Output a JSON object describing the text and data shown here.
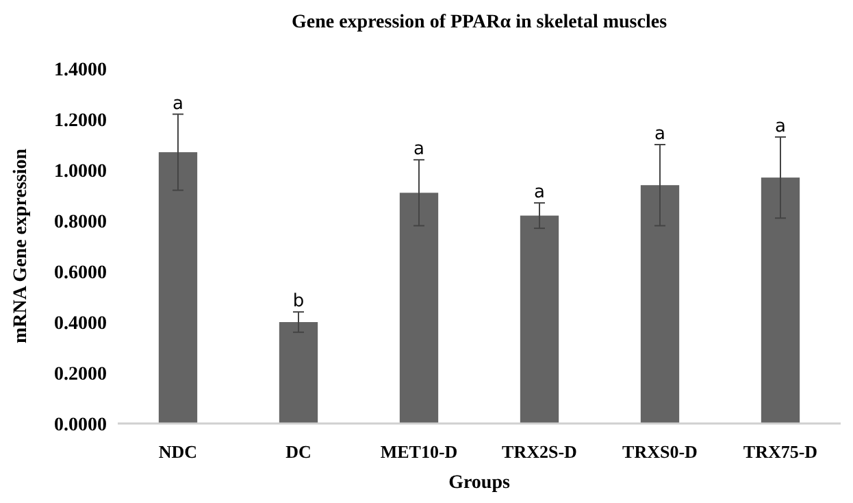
{
  "chart_data": {
    "type": "bar",
    "title": "Gene expression of PPARα in skeletal muscles",
    "xlabel": "Groups",
    "ylabel": "mRNA Gene expression",
    "categories": [
      "NDC",
      "DC",
      "MET10-D",
      "TRX2S-D",
      "TRXS0-D",
      "TRX75-D"
    ],
    "values": [
      1.07,
      0.4,
      0.91,
      0.82,
      0.94,
      0.97
    ],
    "errors": [
      0.15,
      0.04,
      0.13,
      0.05,
      0.16,
      0.16
    ],
    "color": "#646464",
    "ylim": [
      0,
      1.4
    ],
    "yticks": [
      {
        "value": 0,
        "label": "0.0000"
      },
      {
        "value": 0.2,
        "label": "0.2000"
      },
      {
        "value": 0.4,
        "label": "0.4000"
      },
      {
        "value": 0.6,
        "label": "0.6000"
      },
      {
        "value": 0.8,
        "label": "0.8000"
      },
      {
        "value": 1.0,
        "label": "1.0000"
      },
      {
        "value": 1.2,
        "label": "1.2000"
      },
      {
        "value": 1.4,
        "label": "1.4000"
      }
    ],
    "grid": false,
    "annotations": [
      {
        "text": "a",
        "x": "NDC",
        "y": 1.22
      },
      {
        "text": "b",
        "x": "DC",
        "y": 0.44
      },
      {
        "text": "a",
        "x": "MET10-D",
        "y": 1.04
      },
      {
        "text": "a",
        "x": "TRX2S-D",
        "y": 0.87
      },
      {
        "text": "a",
        "x": "TRXS0-D",
        "y": 1.1
      },
      {
        "text": "a",
        "x": "TRX75-D",
        "y": 1.13
      }
    ]
  }
}
